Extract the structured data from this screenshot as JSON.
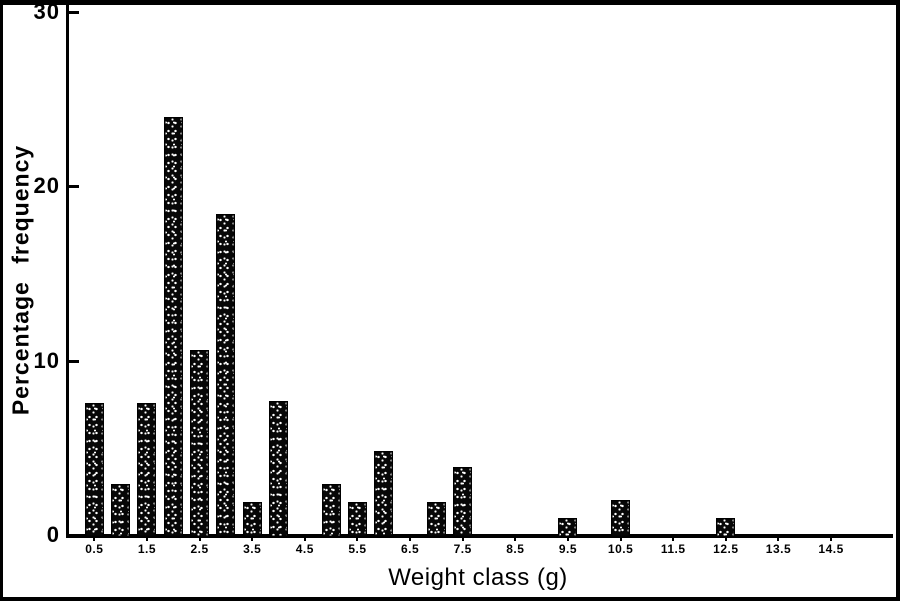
{
  "figure": {
    "background": "#ffffff",
    "frame_color": "#000000"
  },
  "axes": {
    "x_title": "Weight class (g)",
    "y_title": "Percentage frequency",
    "x_tick_labels": [
      "0.5",
      "1.5",
      "2.5",
      "3.5",
      "4.5",
      "5.5",
      "6.5",
      "7.5",
      "8.5",
      "9.5",
      "10.5",
      "11.5",
      "12.5",
      "13.5",
      "14.5"
    ],
    "y_tick_labels": [
      "0",
      "10",
      "20",
      "30"
    ]
  },
  "chart_data": {
    "type": "bar",
    "title": "",
    "xlabel": "Weight class (g)",
    "ylabel": "Percentage frequency",
    "x": [
      0.5,
      1.0,
      1.5,
      2.0,
      2.5,
      3.0,
      3.5,
      4.0,
      5.0,
      5.5,
      6.0,
      7.0,
      7.5,
      9.5,
      10.5,
      12.5
    ],
    "values": [
      7.6,
      2.9,
      7.6,
      24.0,
      10.6,
      18.4,
      1.9,
      7.7,
      2.9,
      1.9,
      4.8,
      1.9,
      3.9,
      1.0,
      2.0,
      1.0
    ],
    "x_ticks": [
      0.5,
      1.5,
      2.5,
      3.5,
      4.5,
      5.5,
      6.5,
      7.5,
      8.5,
      9.5,
      10.5,
      11.5,
      12.5,
      13.5,
      14.5
    ],
    "y_ticks": [
      0,
      10,
      20,
      30
    ],
    "xlim": [
      0,
      15.6
    ],
    "ylim": [
      0,
      30
    ],
    "bar_width_units": 0.36,
    "bar_style": "stippled-black",
    "bar_color": "#000000",
    "grid": false,
    "legend": false
  }
}
